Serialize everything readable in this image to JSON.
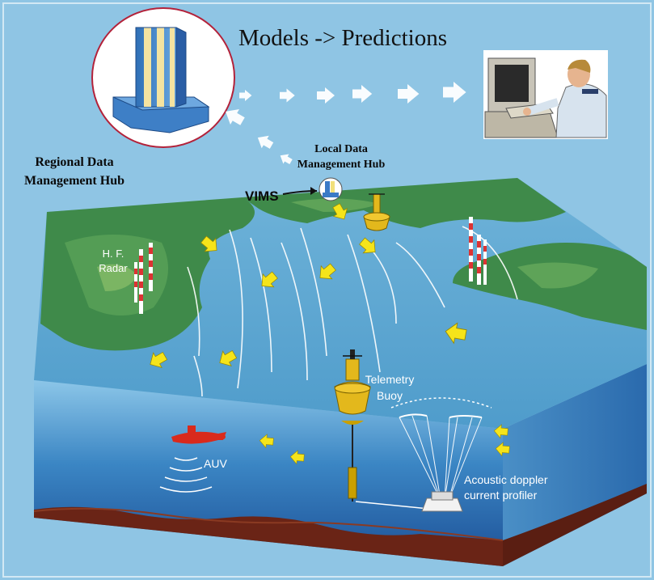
{
  "title": "Models -> Predictions",
  "labels": {
    "regional_hub": [
      "Regional Data",
      "Management Hub"
    ],
    "local_hub": [
      "Local Data",
      "Management Hub"
    ],
    "vims": "VIMS",
    "hf_radar": [
      "H. F.",
      "Radar"
    ],
    "telemetry_buoy": [
      "Telemetry",
      "Buoy"
    ],
    "auv": "AUV",
    "adcp": [
      "Acoustic doppler",
      "current profiler"
    ]
  },
  "colors": {
    "sky": "#8fc5e4",
    "sea_surface": "#5aa6cf",
    "land": "#3f8a4a",
    "water_column": "#2d6fb0",
    "seabed": "#6a2416",
    "buoy": "#e3b81c",
    "arrow": "#f5e41a",
    "auv": "#d92a1c"
  },
  "icons": {
    "regional_hub": "supercomputer-icon",
    "operator": "computer-operator-icon",
    "local_hub": "computer-tower-icon",
    "buoy": "buoy-icon",
    "auv": "submarine-icon",
    "adcp": "adcp-icon",
    "radar": "radar-tower-icon"
  }
}
